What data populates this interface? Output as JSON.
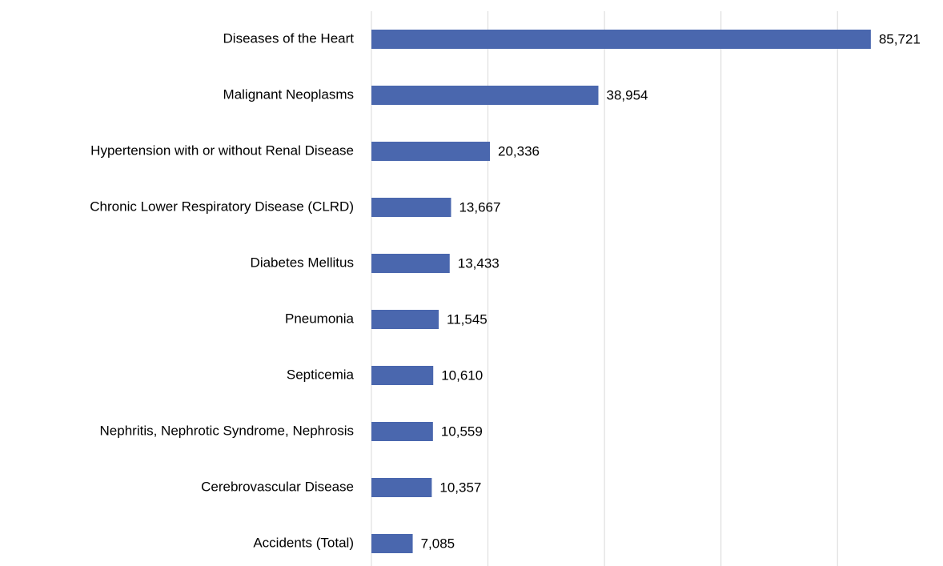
{
  "chart_data": {
    "type": "bar",
    "orientation": "horizontal",
    "categories": [
      "Diseases of the Heart",
      "Malignant Neoplasms",
      "Hypertension with or without Renal Disease",
      "Chronic Lower Respiratory Disease (CLRD)",
      "Diabetes Mellitus",
      "Pneumonia",
      "Septicemia",
      "Nephritis, Nephrotic Syndrome, Nephrosis",
      "Cerebrovascular Disease",
      "Accidents (Total)"
    ],
    "values": [
      85721,
      38954,
      20336,
      13667,
      13433,
      11545,
      10610,
      10559,
      10357,
      7085
    ],
    "value_labels": [
      "85,721",
      "38,954",
      "20,336",
      "13,667",
      "13,433",
      "11,545",
      "10,610",
      "10,559",
      "10,357",
      "7,085"
    ],
    "color": "#4a67ae",
    "xlim": [
      0,
      90000
    ],
    "xticks": [
      0,
      20000,
      40000,
      60000,
      80000
    ],
    "grid": true
  }
}
